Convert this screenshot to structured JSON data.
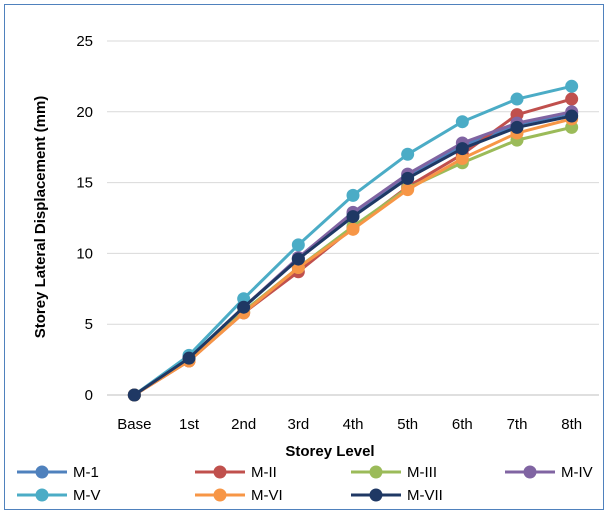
{
  "chart_data": {
    "type": "line",
    "title": "",
    "xlabel": "Storey Level",
    "ylabel": "Storey Lateral Displacement (mm)",
    "categories": [
      "Base",
      "1st",
      "2nd",
      "3rd",
      "4th",
      "5th",
      "6th",
      "7th",
      "8th"
    ],
    "ylim": [
      0,
      25
    ],
    "yticks": [
      0,
      5,
      10,
      15,
      20,
      25
    ],
    "grid": true,
    "legend_position": "bottom",
    "series": [
      {
        "name": "M-1",
        "color": "#4f81bd",
        "values": [
          0,
          2.6,
          6.2,
          9.6,
          12.8,
          15.5,
          17.6,
          19.1,
          19.9
        ]
      },
      {
        "name": "M-II",
        "color": "#c0504d",
        "values": [
          0,
          2.4,
          5.8,
          8.7,
          11.8,
          14.7,
          17.0,
          19.8,
          20.9
        ]
      },
      {
        "name": "M-III",
        "color": "#9bbb59",
        "values": [
          0,
          2.5,
          5.9,
          9.0,
          11.9,
          14.6,
          16.4,
          18.0,
          18.9
        ]
      },
      {
        "name": "M-IV",
        "color": "#8064a2",
        "values": [
          0,
          2.6,
          6.2,
          9.7,
          12.9,
          15.6,
          17.8,
          19.2,
          20.0
        ]
      },
      {
        "name": "M-V",
        "color": "#4bacc6",
        "values": [
          0,
          2.8,
          6.8,
          10.6,
          14.1,
          17.0,
          19.3,
          20.9,
          21.8
        ]
      },
      {
        "name": "M-VI",
        "color": "#f79646",
        "values": [
          0,
          2.4,
          5.8,
          9.0,
          11.7,
          14.5,
          16.7,
          18.5,
          19.5
        ]
      },
      {
        "name": "M-VII",
        "color": "#1f3864",
        "values": [
          0,
          2.6,
          6.2,
          9.6,
          12.6,
          15.3,
          17.4,
          18.9,
          19.7
        ]
      }
    ]
  }
}
